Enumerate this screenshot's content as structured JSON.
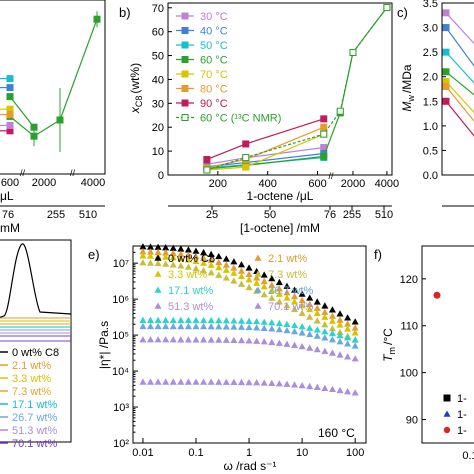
{
  "chart_data": [
    {
      "panel": "a",
      "type": "line",
      "xlabel": "μL",
      "x2label": "mM",
      "x_ticks": [
        "600",
        "2000",
        "4000"
      ],
      "x2_ticks": [
        "76",
        "255",
        "510"
      ],
      "series": [
        {
          "color": "#2ca02c",
          "points": [
            [
              600,
              3.2
            ],
            [
              1200,
              2.1
            ],
            [
              2000,
              3.0
            ],
            [
              4400,
              8.6
            ]
          ]
        },
        {
          "color": "#2ca02c",
          "points": [
            [
              600,
              4.3
            ],
            [
              1200,
              2.6
            ]
          ]
        },
        {
          "color": "#17becf",
          "points": [
            [
              600,
              5.3
            ]
          ]
        },
        {
          "color": "#3f7fd6",
          "points": [
            [
              600,
              4.8
            ]
          ]
        },
        {
          "color": "#d6c400",
          "points": [
            [
              600,
              3.6
            ]
          ]
        },
        {
          "color": "#e69a2b",
          "points": [
            [
              600,
              3.3
            ]
          ]
        },
        {
          "color": "#c21a5a",
          "points": [
            [
              600,
              2.4
            ]
          ]
        },
        {
          "color": "#c080d6",
          "points": [
            [
              600,
              2.7
            ]
          ]
        }
      ]
    },
    {
      "panel": "b",
      "type": "line",
      "label": "b)",
      "ylabel": "x",
      "ylabel_sub": "C8",
      "ylabel_unit": "(wt%)",
      "xlabel": "1-octene /μL",
      "x2label": "[1-octene] /mM",
      "xlim": [
        0,
        4300
      ],
      "ylim": [
        0,
        72
      ],
      "y_ticks": [
        "0",
        "10",
        "20",
        "30",
        "40",
        "50",
        "60",
        "70"
      ],
      "x_ticks": [
        "200",
        "400",
        "600",
        "2000",
        "4000"
      ],
      "x2_ticks": [
        "25",
        "50",
        "76",
        "255",
        "510"
      ],
      "legend": [
        "30 °C",
        "40 °C",
        "50 °C",
        "60 °C",
        "70 °C",
        "80 °C",
        "90 °C",
        "60 °C (¹³C NMR)"
      ],
      "series": [
        {
          "name": "30 °C",
          "color": "#c080d6",
          "points": [
            [
              156,
              4.5
            ],
            [
              312,
              7.2
            ],
            [
              625,
              11.5
            ]
          ]
        },
        {
          "name": "40 °C",
          "color": "#3f7fd6",
          "points": [
            [
              156,
              3.5
            ],
            [
              312,
              5.2
            ],
            [
              625,
              9.0
            ]
          ]
        },
        {
          "name": "50 °C",
          "color": "#17becf",
          "points": [
            [
              156,
              3.0
            ],
            [
              312,
              4.3
            ],
            [
              625,
              7.3
            ]
          ]
        },
        {
          "name": "60 °C",
          "color": "#2ca02c",
          "points": [
            [
              156,
              2.6
            ],
            [
              312,
              4.0
            ],
            [
              625,
              7.8
            ],
            [
              1250,
              26.0
            ],
            [
              2000,
              51.3
            ],
            [
              4000,
              70.1
            ]
          ]
        },
        {
          "name": "70 °C",
          "color": "#d6c400",
          "points": [
            [
              156,
              2.1
            ],
            [
              312,
              3.3
            ],
            [
              625,
              17.1
            ]
          ]
        },
        {
          "name": "80 °C",
          "color": "#e69a2b",
          "points": [
            [
              156,
              3.0
            ],
            [
              312,
              6.5
            ],
            [
              625,
              20.0
            ]
          ]
        },
        {
          "name": "90 °C",
          "color": "#c21a5a",
          "points": [
            [
              156,
              6.5
            ],
            [
              312,
              13.0
            ],
            [
              625,
              23.5
            ]
          ]
        },
        {
          "name": "60 °C (¹³C NMR)",
          "color": "#2ca02c",
          "dashed": true,
          "open": true,
          "points": [
            [
              156,
              2.1
            ],
            [
              312,
              7.3
            ],
            [
              625,
              17.1
            ],
            [
              1250,
              26.7
            ],
            [
              2000,
              51.3
            ],
            [
              4000,
              70.1
            ]
          ]
        }
      ]
    },
    {
      "panel": "c",
      "type": "line",
      "label": "c)",
      "ylabel": "M",
      "ylabel_sub": "w",
      "ylabel_unit": "/MDa",
      "ylim": [
        0,
        3.5
      ],
      "y_ticks": [
        "0.0",
        "0.5",
        "1.0",
        "1.5",
        "2.0",
        "2.5",
        "3.0",
        "3.5"
      ],
      "series": [
        {
          "color": "#c080d6",
          "points": [
            [
              0,
              3.3
            ],
            [
              1,
              2.5
            ]
          ]
        },
        {
          "color": "#3f7fd6",
          "points": [
            [
              0,
              3.0
            ],
            [
              1,
              2.0
            ]
          ]
        },
        {
          "color": "#17becf",
          "points": [
            [
              0,
              2.5
            ],
            [
              1,
              1.7
            ]
          ]
        },
        {
          "color": "#2ca02c",
          "points": [
            [
              0,
              2.1
            ],
            [
              1,
              1.5
            ]
          ]
        },
        {
          "color": "#d6c400",
          "points": [
            [
              0,
              1.9
            ],
            [
              1,
              1.1
            ]
          ]
        },
        {
          "color": "#e69a2b",
          "points": [
            [
              0,
              1.8
            ],
            [
              1,
              0.9
            ]
          ]
        },
        {
          "color": "#c21a5a",
          "points": [
            [
              0,
              1.5
            ],
            [
              1,
              0.6
            ]
          ]
        }
      ]
    },
    {
      "panel": "d",
      "type": "line",
      "legend": [
        "0 wt% C8",
        "2.1 wt%",
        "3.3 wt%",
        "7.3 wt%",
        "17.1 wt%",
        "26.7 wt%",
        "51.3 wt%",
        "70.1 wt%"
      ],
      "legend_colors": [
        "#000000",
        "#e69a2b",
        "#d6c400",
        "#e6a52a",
        "#17becf",
        "#6ca6e0",
        "#a98ee0",
        "#7a3fc8"
      ]
    },
    {
      "panel": "e",
      "type": "scatter",
      "label": "e)",
      "xlabel": "ω /rad s⁻¹",
      "ylabel": "|η*| /Pa.s",
      "x_scale": "log",
      "y_scale": "log",
      "xlim": [
        0.0065,
        160
      ],
      "ylim": [
        100.0,
        30000000.0
      ],
      "x_ticks": [
        "0.01",
        "0.1",
        "1",
        "10",
        "100"
      ],
      "y_ticks": [
        "10²",
        "10³",
        "10⁴",
        "10⁵",
        "10⁶",
        "10⁷"
      ],
      "annotation": "160 °C",
      "legend": [
        "0 wt% C8",
        "2.1 wt%",
        "3.3 wt%",
        "7.3 wt%",
        "17.1 wt%",
        "26.7 wt%",
        "51.3 wt%",
        "70.1 wt%"
      ],
      "series": [
        {
          "name": "0 wt% C8",
          "color": "#000000",
          "eta0": 30000000.0,
          "tau": 5,
          "n": 0.78
        },
        {
          "name": "2.1 wt%",
          "color": "#e69a2b",
          "eta0": 22000000.0,
          "tau": 6,
          "n": 0.77
        },
        {
          "name": "3.3 wt%",
          "color": "#d6c400",
          "eta0": 17000000.0,
          "tau": 7,
          "n": 0.76
        },
        {
          "name": "7.3 wt%",
          "color": "#c9bd3c",
          "eta0": 11000000.0,
          "tau": 8,
          "n": 0.75
        },
        {
          "name": "17.1 wt%",
          "color": "#2ad4c8",
          "eta0": 260000.0,
          "tau": 0.15,
          "n": 0.45
        },
        {
          "name": "26.7 wt%",
          "color": "#6ca6e0",
          "eta0": 175000.0,
          "tau": 0.15,
          "n": 0.45
        },
        {
          "name": "51.3 wt%",
          "color": "#a98ee0",
          "eta0": 75000.0,
          "tau": 0.2,
          "n": 0.4
        },
        {
          "name": "70.1 wt%",
          "color": "#a98ee0",
          "eta0": 5000.0,
          "tau": 0.15,
          "n": 0.25
        }
      ]
    },
    {
      "panel": "f",
      "type": "scatter",
      "label": "f)",
      "ylabel": "T",
      "ylabel_sub": "m",
      "ylabel_unit": "/°C",
      "ylim": [
        85,
        127
      ],
      "y_ticks": [
        "90",
        "100",
        "110",
        "120"
      ],
      "x_ticks": [
        "0.1"
      ],
      "legend": [
        "1-",
        "1-",
        "1-"
      ],
      "series": [
        {
          "marker": "circle",
          "color": "#d62728",
          "points": [
            [
              0.1,
              116.5
            ]
          ]
        }
      ]
    }
  ]
}
